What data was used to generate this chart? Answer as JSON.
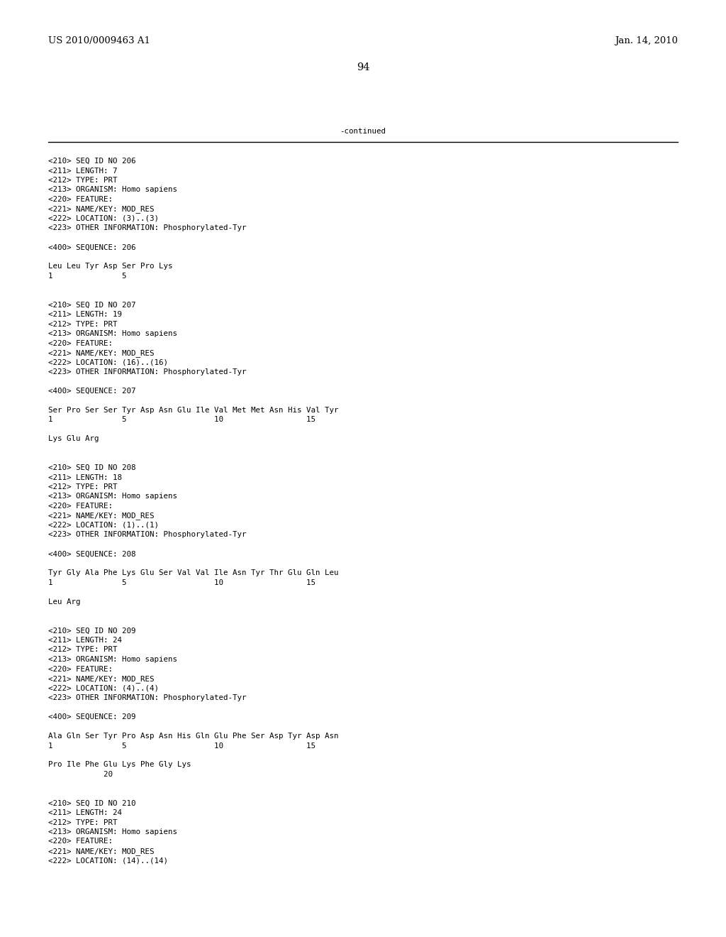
{
  "header_left": "US 2010/0009463 A1",
  "header_right": "Jan. 14, 2010",
  "page_number": "94",
  "continued_text": "-continued",
  "background_color": "#ffffff",
  "text_color": "#000000",
  "font_size_header": 9.5,
  "font_size_body": 7.8,
  "font_size_page": 10.5,
  "content": [
    "<210> SEQ ID NO 206",
    "<211> LENGTH: 7",
    "<212> TYPE: PRT",
    "<213> ORGANISM: Homo sapiens",
    "<220> FEATURE:",
    "<221> NAME/KEY: MOD_RES",
    "<222> LOCATION: (3)..(3)",
    "<223> OTHER INFORMATION: Phosphorylated-Tyr",
    "",
    "<400> SEQUENCE: 206",
    "",
    "Leu Leu Tyr Asp Ser Pro Lys",
    "1               5",
    "",
    "",
    "<210> SEQ ID NO 207",
    "<211> LENGTH: 19",
    "<212> TYPE: PRT",
    "<213> ORGANISM: Homo sapiens",
    "<220> FEATURE:",
    "<221> NAME/KEY: MOD_RES",
    "<222> LOCATION: (16)..(16)",
    "<223> OTHER INFORMATION: Phosphorylated-Tyr",
    "",
    "<400> SEQUENCE: 207",
    "",
    "Ser Pro Ser Ser Tyr Asp Asn Glu Ile Val Met Met Asn His Val Tyr",
    "1               5                   10                  15",
    "",
    "Lys Glu Arg",
    "",
    "",
    "<210> SEQ ID NO 208",
    "<211> LENGTH: 18",
    "<212> TYPE: PRT",
    "<213> ORGANISM: Homo sapiens",
    "<220> FEATURE:",
    "<221> NAME/KEY: MOD_RES",
    "<222> LOCATION: (1)..(1)",
    "<223> OTHER INFORMATION: Phosphorylated-Tyr",
    "",
    "<400> SEQUENCE: 208",
    "",
    "Tyr Gly Ala Phe Lys Glu Ser Val Val Ile Asn Tyr Thr Glu Gln Leu",
    "1               5                   10                  15",
    "",
    "Leu Arg",
    "",
    "",
    "<210> SEQ ID NO 209",
    "<211> LENGTH: 24",
    "<212> TYPE: PRT",
    "<213> ORGANISM: Homo sapiens",
    "<220> FEATURE:",
    "<221> NAME/KEY: MOD_RES",
    "<222> LOCATION: (4)..(4)",
    "<223> OTHER INFORMATION: Phosphorylated-Tyr",
    "",
    "<400> SEQUENCE: 209",
    "",
    "Ala Gln Ser Tyr Pro Asp Asn His Gln Glu Phe Ser Asp Tyr Asp Asn",
    "1               5                   10                  15",
    "",
    "Pro Ile Phe Glu Lys Phe Gly Lys",
    "            20",
    "",
    "",
    "<210> SEQ ID NO 210",
    "<211> LENGTH: 24",
    "<212> TYPE: PRT",
    "<213> ORGANISM: Homo sapiens",
    "<220> FEATURE:",
    "<221> NAME/KEY: MOD_RES",
    "<222> LOCATION: (14)..(14)"
  ]
}
